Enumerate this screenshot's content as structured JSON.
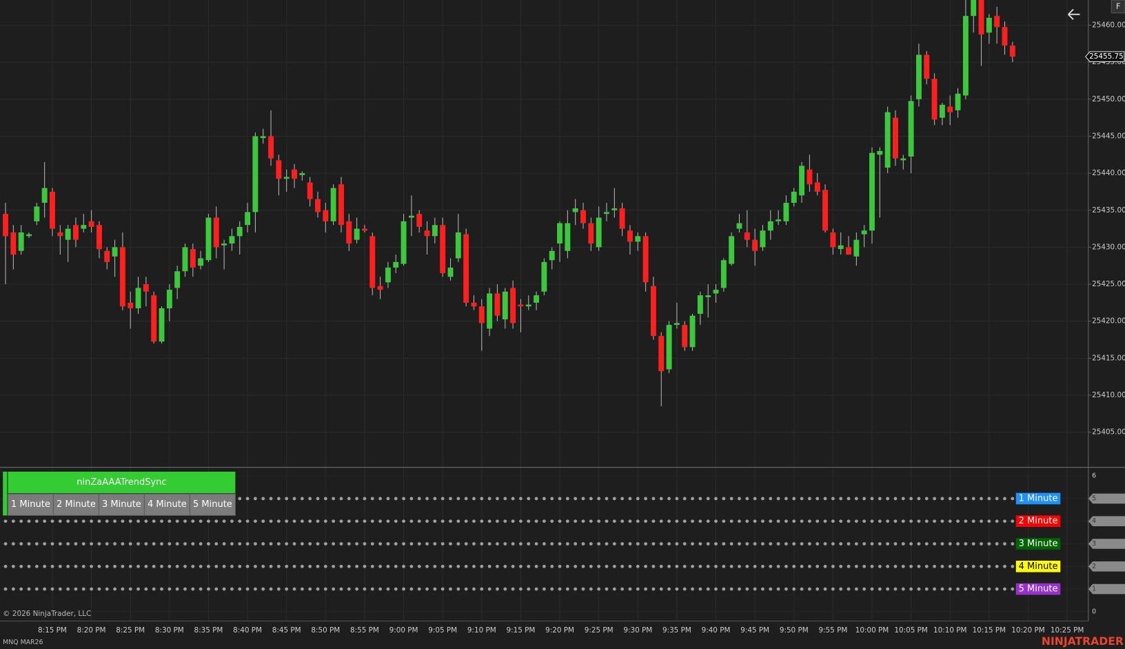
{
  "chart_data": [
    {
      "type": "candlestick",
      "instrument": "MNQ MAR26",
      "copyright": "© 2026 NinjaTrader, LLC",
      "brand": "NINJATRADER",
      "toolbar_button": "F",
      "up_color": "#3cc83c",
      "down_color": "#ff1f1f",
      "grid": true,
      "ylim": [
        25400.35,
        25463.4
      ],
      "yticks": [
        {
          "value": 25405,
          "label": "25405.00"
        },
        {
          "value": 25410,
          "label": "25410.00"
        },
        {
          "value": 25415,
          "label": "25415.00"
        },
        {
          "value": 25420,
          "label": "25420.00"
        },
        {
          "value": 25425,
          "label": "25425.00"
        },
        {
          "value": 25430,
          "label": "25430.00"
        },
        {
          "value": 25435,
          "label": "25435.00"
        },
        {
          "value": 25440,
          "label": "25440.00"
        },
        {
          "value": 25445,
          "label": "25445.00"
        },
        {
          "value": 25450,
          "label": "25450.00"
        },
        {
          "value": 25455,
          "label": "25455.00"
        },
        {
          "value": 25460,
          "label": "25460.00"
        }
      ],
      "xticks": [
        "8:15 PM",
        "8:20 PM",
        "8:25 PM",
        "8:30 PM",
        "8:35 PM",
        "8:40 PM",
        "8:45 PM",
        "8:50 PM",
        "8:55 PM",
        "9:00 PM",
        "9:05 PM",
        "9:10 PM",
        "9:15 PM",
        "9:20 PM",
        "9:25 PM",
        "9:30 PM",
        "9:35 PM",
        "9:40 PM",
        "9:45 PM",
        "9:50 PM",
        "9:55 PM",
        "10:00 PM",
        "10:05 PM",
        "10:10 PM",
        "10:15 PM",
        "10:20 PM",
        "10:25 PM"
      ],
      "x": [
        "8:09 PM",
        "8:10 PM",
        "8:11 PM",
        "8:12 PM",
        "8:13 PM",
        "8:14 PM",
        "8:15 PM",
        "8:16 PM",
        "8:17 PM",
        "8:18 PM",
        "8:19 PM",
        "8:20 PM",
        "8:21 PM",
        "8:22 PM",
        "8:23 PM",
        "8:24 PM",
        "8:25 PM",
        "8:26 PM",
        "8:27 PM",
        "8:28 PM",
        "8:29 PM",
        "8:30 PM",
        "8:31 PM",
        "8:32 PM",
        "8:33 PM",
        "8:34 PM",
        "8:35 PM",
        "8:36 PM",
        "8:37 PM",
        "8:38 PM",
        "8:39 PM",
        "8:40 PM",
        "8:41 PM",
        "8:42 PM",
        "8:43 PM",
        "8:44 PM",
        "8:45 PM",
        "8:46 PM",
        "8:47 PM",
        "8:48 PM",
        "8:49 PM",
        "8:50 PM",
        "8:51 PM",
        "8:52 PM",
        "8:53 PM",
        "8:54 PM",
        "8:55 PM",
        "8:56 PM",
        "8:57 PM",
        "8:58 PM",
        "8:59 PM",
        "9:00 PM",
        "9:01 PM",
        "9:02 PM",
        "9:03 PM",
        "9:04 PM",
        "9:05 PM",
        "9:06 PM",
        "9:07 PM",
        "9:08 PM",
        "9:09 PM",
        "9:10 PM",
        "9:11 PM",
        "9:12 PM",
        "9:13 PM",
        "9:14 PM",
        "9:15 PM",
        "9:16 PM",
        "9:17 PM",
        "9:18 PM",
        "9:19 PM",
        "9:20 PM",
        "9:21 PM",
        "9:22 PM",
        "9:23 PM",
        "9:24 PM",
        "9:25 PM",
        "9:26 PM",
        "9:27 PM",
        "9:28 PM",
        "9:29 PM",
        "9:30 PM",
        "9:31 PM",
        "9:32 PM",
        "9:33 PM",
        "9:34 PM",
        "9:35 PM",
        "9:36 PM",
        "9:37 PM",
        "9:38 PM",
        "9:39 PM",
        "9:40 PM",
        "9:41 PM",
        "9:42 PM",
        "9:43 PM",
        "9:44 PM",
        "9:45 PM",
        "9:46 PM",
        "9:47 PM",
        "9:48 PM",
        "9:49 PM",
        "9:50 PM",
        "9:51 PM",
        "9:52 PM",
        "9:53 PM",
        "9:54 PM",
        "9:55 PM",
        "9:56 PM",
        "9:57 PM",
        "9:58 PM",
        "9:59 PM",
        "10:00 PM",
        "10:01 PM",
        "10:02 PM",
        "10:03 PM",
        "10:04 PM",
        "10:05 PM",
        "10:06 PM",
        "10:07 PM",
        "10:08 PM",
        "10:09 PM",
        "10:10 PM",
        "10:11 PM",
        "10:12 PM",
        "10:13 PM",
        "10:14 PM",
        "10:15 PM",
        "10:16 PM",
        "10:17 PM",
        "10:18 PM"
      ],
      "ohlc": [
        [
          25434.5,
          25436,
          25425,
          25431.5
        ],
        [
          25432,
          25433,
          25427,
          25429
        ],
        [
          25429.5,
          25433,
          25429,
          25432
        ],
        [
          25431.5,
          25432,
          25431.25,
          25431.75
        ],
        [
          25433.5,
          25436,
          25433,
          25435.5
        ],
        [
          25436,
          25441.5,
          25434,
          25438
        ],
        [
          25437.5,
          25438,
          25431.5,
          25432.5
        ],
        [
          25432,
          25433,
          25429,
          25431.5
        ],
        [
          25431,
          25433,
          25428,
          25432.5
        ],
        [
          25433,
          25434,
          25430,
          25431
        ],
        [
          25432.5,
          25434.5,
          25432,
          25433
        ],
        [
          25433.5,
          25435,
          25432,
          25432.75
        ],
        [
          25433,
          25433.5,
          25428.5,
          25429.75
        ],
        [
          25429.5,
          25430,
          25427,
          25428
        ],
        [
          25428.75,
          25431,
          25426,
          25430
        ],
        [
          25430,
          25432,
          25421.5,
          25422
        ],
        [
          25422.5,
          25424,
          25419,
          25421.75
        ],
        [
          25421.75,
          25426,
          25421,
          25424.5
        ],
        [
          25425,
          25426,
          25422,
          25424
        ],
        [
          25423.5,
          25424,
          25417,
          25417.25
        ],
        [
          25417.25,
          25422,
          25417,
          25421.75
        ],
        [
          25421.75,
          25425,
          25420,
          25424.25
        ],
        [
          25424.5,
          25427.5,
          25423,
          25426.75
        ],
        [
          25426.75,
          25430.5,
          25426,
          25430
        ],
        [
          25429.75,
          25430.5,
          25426,
          25427.25
        ],
        [
          25427.5,
          25429.5,
          25427,
          25428.5
        ],
        [
          25428.25,
          25434.5,
          25428,
          25434
        ],
        [
          25434,
          25435.5,
          25428.5,
          25430
        ],
        [
          25430.25,
          25431,
          25427,
          25430.5
        ],
        [
          25430.5,
          25432.5,
          25429.5,
          25431.5
        ],
        [
          25431.5,
          25433.5,
          25429,
          25432.75
        ],
        [
          25433,
          25436,
          25432,
          25434.75
        ],
        [
          25434.75,
          25445.5,
          25432,
          25445
        ],
        [
          25444.75,
          25446,
          25444,
          25445
        ],
        [
          25445,
          25448.5,
          25441,
          25442
        ],
        [
          25441.75,
          25442.5,
          25437,
          25439.25
        ],
        [
          25439.25,
          25440.5,
          25437.5,
          25439.5
        ],
        [
          25440.5,
          25441.25,
          25438,
          25439.25
        ],
        [
          25439.75,
          25440.25,
          25439,
          25440
        ],
        [
          25438.75,
          25439.5,
          25435.5,
          25436.5
        ],
        [
          25436.5,
          25437.5,
          25434,
          25434.75
        ],
        [
          25435,
          25436,
          25432,
          25433.5
        ],
        [
          25433.5,
          25438.5,
          25433,
          25438
        ],
        [
          25438.5,
          25439.5,
          25432,
          25433
        ],
        [
          25433.5,
          25434.5,
          25429.5,
          25430.5
        ],
        [
          25431,
          25434,
          25430.5,
          25432.5
        ],
        [
          25432.5,
          25433,
          25432,
          25432.25
        ],
        [
          25431.5,
          25432,
          25423.5,
          25424.5
        ],
        [
          25424.75,
          25426,
          25423,
          25424.25
        ],
        [
          25425.25,
          25428,
          25424.5,
          25427.25
        ],
        [
          25427.25,
          25429,
          25426.5,
          25428
        ],
        [
          25427.75,
          25434.5,
          25427.5,
          25433.5
        ],
        [
          25434,
          25437,
          25431.5,
          25434.25
        ],
        [
          25434.5,
          25435,
          25432,
          25432.75
        ],
        [
          25432.25,
          25433.5,
          25429,
          25431.5
        ],
        [
          25431.5,
          25434,
          25430.5,
          25433
        ],
        [
          25433,
          25434,
          25426,
          25426.5
        ],
        [
          25426,
          25428.5,
          25425.5,
          25427.25
        ],
        [
          25428.5,
          25434.5,
          25428,
          25432
        ],
        [
          25431.75,
          25432.5,
          25422,
          25422.5
        ],
        [
          25422.5,
          25423.5,
          25421.5,
          25422
        ],
        [
          25422,
          25423,
          25416,
          25419.75
        ],
        [
          25419,
          25424.5,
          25418,
          25423.75
        ],
        [
          25423.75,
          25425,
          25420,
          25420.75
        ],
        [
          25420.25,
          25424.5,
          25419,
          25424
        ],
        [
          25424.5,
          25425.5,
          25419,
          25419.75
        ],
        [
          25422.25,
          25423,
          25418.5,
          25422
        ],
        [
          25422,
          25423.5,
          25421.5,
          25422.25
        ],
        [
          25422.5,
          25424,
          25421.5,
          25423.5
        ],
        [
          25424,
          25428.5,
          25423.5,
          25428
        ],
        [
          25428.25,
          25430,
          25427,
          25429.5
        ],
        [
          25430.5,
          25433.5,
          25428,
          25433.25
        ],
        [
          25429.5,
          25435,
          25428.5,
          25433.25
        ],
        [
          25434.75,
          25436.5,
          25433,
          25435.25
        ],
        [
          25435,
          25436,
          25432.5,
          25433.25
        ],
        [
          25433.25,
          25434,
          25429.5,
          25430.5
        ],
        [
          25430,
          25435.5,
          25429.5,
          25434
        ],
        [
          25434.5,
          25436,
          25433.5,
          25434.75
        ],
        [
          25435,
          25438,
          25434,
          25435.25
        ],
        [
          25435.25,
          25436,
          25431.5,
          25432.5
        ],
        [
          25432.25,
          25433,
          25429,
          25430.75
        ],
        [
          25430.75,
          25432,
          25429.5,
          25431.5
        ],
        [
          25431.5,
          25432,
          25424,
          25425.25
        ],
        [
          25424.75,
          25426,
          25417.5,
          25418
        ],
        [
          25418,
          25418.5,
          25408.5,
          25413.25
        ],
        [
          25413.5,
          25420,
          25413,
          25419.5
        ],
        [
          25419.5,
          25422.5,
          25419,
          25419.75
        ],
        [
          25419.5,
          25420,
          25416,
          25416.5
        ],
        [
          25416.5,
          25421,
          25416,
          25420.75
        ],
        [
          25421,
          25424,
          25419.5,
          25423.5
        ],
        [
          25423.25,
          25425,
          25420.5,
          25423.5
        ],
        [
          25423.75,
          25425,
          25422.5,
          25424.25
        ],
        [
          25424.5,
          25428.5,
          25424,
          25428.25
        ],
        [
          25427.75,
          25432,
          25427.5,
          25431.5
        ],
        [
          25432.5,
          25434.5,
          25432,
          25433.25
        ],
        [
          25432,
          25435,
          25430,
          25431
        ],
        [
          25431,
          25432.5,
          25427.5,
          25429.5
        ],
        [
          25430,
          25433,
          25429.5,
          25432.25
        ],
        [
          25432.25,
          25435,
          25431,
          25433.5
        ],
        [
          25433.5,
          25435,
          25433,
          25433.75
        ],
        [
          25433.5,
          25437,
          25433,
          25436
        ],
        [
          25436,
          25438,
          25435.5,
          25437.5
        ],
        [
          25437,
          25441.5,
          25436,
          25441
        ],
        [
          25440.5,
          25442.5,
          25437.5,
          25438.5
        ],
        [
          25438.75,
          25440,
          25437,
          25437.5
        ],
        [
          25437.75,
          25438.5,
          25432,
          25432.25
        ],
        [
          25432,
          25432.5,
          25429,
          25430
        ],
        [
          25429.75,
          25432,
          25429,
          25430.25
        ],
        [
          25430,
          25431.5,
          25429,
          25429
        ],
        [
          25428.75,
          25432,
          25427.5,
          25431
        ],
        [
          25431.75,
          25433,
          25430,
          25432.25
        ],
        [
          25432.25,
          25443.5,
          25430.5,
          25442.75
        ],
        [
          25442.5,
          25443.5,
          25434,
          25443
        ],
        [
          25440.75,
          25449,
          25440,
          25448.25
        ],
        [
          25447.5,
          25448.5,
          25441,
          25442
        ],
        [
          25441.75,
          25442.5,
          25440.5,
          25442
        ],
        [
          25442.25,
          25450.5,
          25440,
          25449.75
        ],
        [
          25450,
          25457.5,
          25449,
          25456
        ],
        [
          25456,
          25456.5,
          25452,
          25452.75
        ],
        [
          25452.75,
          25453.5,
          25446.5,
          25447.25
        ],
        [
          25447.5,
          25449.5,
          25446.5,
          25449.25
        ],
        [
          25449,
          25450.5,
          25446.5,
          25448.25
        ],
        [
          25448.5,
          25451.5,
          25447.5,
          25450.75
        ],
        [
          25450.5,
          25463.5,
          25450,
          25461.25
        ],
        [
          25461.25,
          25463.5,
          25459,
          25463.5
        ],
        [
          25463.5,
          25463.5,
          25454.5,
          25458.75
        ],
        [
          25459,
          25461.5,
          25457.5,
          25461
        ],
        [
          25461.25,
          25462.5,
          25457.5,
          25459.75
        ],
        [
          25459.75,
          25460.5,
          25456,
          25457.25
        ],
        [
          25457.25,
          25457.75,
          25455,
          25455.75
        ]
      ]
    },
    {
      "type": "dots",
      "title": "ninZaAAATrendSync",
      "dot_color": "#a0a0a0",
      "ylim": [
        -0.38,
        6.35
      ],
      "yticks": [
        0,
        1,
        2,
        3,
        4,
        5,
        6
      ],
      "series": [
        {
          "name": "1 Minute",
          "color": "#1e90ff",
          "value": 5
        },
        {
          "name": "2 Minute",
          "color": "#ff0000",
          "value": 4
        },
        {
          "name": "3 Minute",
          "color": "#006400",
          "value": 3
        },
        {
          "name": "4 Minute",
          "color": "#ffff00",
          "value": 2
        },
        {
          "name": "5 Minute",
          "color": "#9932cc",
          "value": 1
        }
      ]
    }
  ]
}
